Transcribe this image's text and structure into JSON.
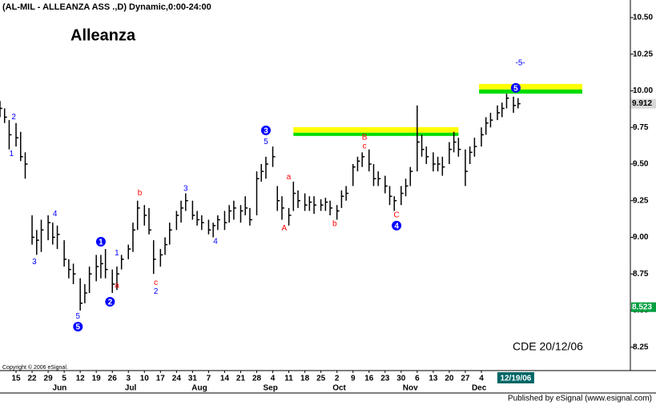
{
  "chart_data": {
    "type": "ohlc",
    "header": "(AL-MIL - ALLEANZA ASS      .,D) Dynamic,0:00-24:00",
    "title": "Alleanza",
    "copyright": "Copyright © 2006 eSignal.",
    "footer": "Published by eSignal (www.esignal.com)",
    "stamp": "CDE  20/12/06",
    "color": "#000000",
    "xlim": [
      "2006-05-08",
      "2007-02-07"
    ],
    "ylim": [
      8.09,
      10.62
    ],
    "yticks": [
      {
        "value": 10.5,
        "label": "10.50"
      },
      {
        "value": 10.25,
        "label": "10.25"
      },
      {
        "value": 10,
        "label": "10.00"
      },
      {
        "value": 9.75,
        "label": "9.75"
      },
      {
        "value": 9.5,
        "label": "9.50"
      },
      {
        "value": 9.25,
        "label": "9.25"
      },
      {
        "value": 9,
        "label": "9.00"
      },
      {
        "value": 8.75,
        "label": "8.75"
      },
      {
        "value": 8.5,
        "label": "8.50"
      },
      {
        "value": 8.25,
        "label": "8.25"
      }
    ],
    "xticks": [
      {
        "value": "2006-05-15",
        "label": "15"
      },
      {
        "value": "2006-05-22",
        "label": "22"
      },
      {
        "value": "2006-05-29",
        "label": "29"
      },
      {
        "value": "2006-06-05",
        "label": "5"
      },
      {
        "value": "2006-06-12",
        "label": "12"
      },
      {
        "value": "2006-06-19",
        "label": "19"
      },
      {
        "value": "2006-06-26",
        "label": "26"
      },
      {
        "value": "2006-07-03",
        "label": "3"
      },
      {
        "value": "2006-07-10",
        "label": "10"
      },
      {
        "value": "2006-07-17",
        "label": "17"
      },
      {
        "value": "2006-07-24",
        "label": "24"
      },
      {
        "value": "2006-07-31",
        "label": "31"
      },
      {
        "value": "2006-08-07",
        "label": "7"
      },
      {
        "value": "2006-08-14",
        "label": "14"
      },
      {
        "value": "2006-08-21",
        "label": "21"
      },
      {
        "value": "2006-08-28",
        "label": "28"
      },
      {
        "value": "2006-09-04",
        "label": "4"
      },
      {
        "value": "2006-09-11",
        "label": "11"
      },
      {
        "value": "2006-09-18",
        "label": "18"
      },
      {
        "value": "2006-09-25",
        "label": "25"
      },
      {
        "value": "2006-10-02",
        "label": "2"
      },
      {
        "value": "2006-10-09",
        "label": "9"
      },
      {
        "value": "2006-10-16",
        "label": "16"
      },
      {
        "value": "2006-10-23",
        "label": "23"
      },
      {
        "value": "2006-10-30",
        "label": "30"
      },
      {
        "value": "2006-11-06",
        "label": "6"
      },
      {
        "value": "2006-11-13",
        "label": "13"
      },
      {
        "value": "2006-11-20",
        "label": "20"
      },
      {
        "value": "2006-11-27",
        "label": "27"
      },
      {
        "value": "2006-12-04",
        "label": "4"
      }
    ],
    "months": [
      {
        "value": "2006-06-03",
        "label": "Jun"
      },
      {
        "value": "2006-07-04",
        "label": "Jul"
      },
      {
        "value": "2006-08-03",
        "label": "Aug"
      },
      {
        "value": "2006-09-03",
        "label": "Sep"
      },
      {
        "value": "2006-10-03",
        "label": "Oct"
      },
      {
        "value": "2006-11-03",
        "label": "Nov"
      },
      {
        "value": "2006-12-03",
        "label": "Dec"
      }
    ],
    "current_date": {
      "value": "2006-12-19",
      "label": "12/19/06"
    },
    "price_labels": [
      {
        "value": 9.912,
        "label": "9.912",
        "color": "#000000",
        "background": "#d8d8d8"
      },
      {
        "value": 8.523,
        "label": "8.523",
        "color": "#ffffff",
        "background": "#00a040"
      }
    ],
    "x": [
      "2006-05-08",
      "2006-05-10",
      "2006-05-12",
      "2006-05-15",
      "2006-05-17",
      "2006-05-19",
      "2006-05-22",
      "2006-05-24",
      "2006-05-26",
      "2006-05-29",
      "2006-05-31",
      "2006-06-02",
      "2006-06-05",
      "2006-06-07",
      "2006-06-09",
      "2006-06-12",
      "2006-06-14",
      "2006-06-16",
      "2006-06-19",
      "2006-06-21",
      "2006-06-23",
      "2006-06-26",
      "2006-06-28",
      "2006-06-30",
      "2006-07-03",
      "2006-07-05",
      "2006-07-07",
      "2006-07-10",
      "2006-07-12",
      "2006-07-14",
      "2006-07-17",
      "2006-07-19",
      "2006-07-21",
      "2006-07-24",
      "2006-07-26",
      "2006-07-28",
      "2006-07-31",
      "2006-08-02",
      "2006-08-04",
      "2006-08-07",
      "2006-08-09",
      "2006-08-11",
      "2006-08-14",
      "2006-08-16",
      "2006-08-18",
      "2006-08-21",
      "2006-08-23",
      "2006-08-25",
      "2006-08-28",
      "2006-08-30",
      "2006-09-01",
      "2006-09-04",
      "2006-09-06",
      "2006-09-08",
      "2006-09-11",
      "2006-09-13",
      "2006-09-15",
      "2006-09-18",
      "2006-09-20",
      "2006-09-22",
      "2006-09-25",
      "2006-09-27",
      "2006-09-29",
      "2006-10-02",
      "2006-10-04",
      "2006-10-06",
      "2006-10-09",
      "2006-10-11",
      "2006-10-13",
      "2006-10-16",
      "2006-10-18",
      "2006-10-20",
      "2006-10-23",
      "2006-10-25",
      "2006-10-27",
      "2006-10-30",
      "2006-11-01",
      "2006-11-03",
      "2006-11-06",
      "2006-11-08",
      "2006-11-10",
      "2006-11-13",
      "2006-11-15",
      "2006-11-17",
      "2006-11-20",
      "2006-11-22",
      "2006-11-24",
      "2006-11-27",
      "2006-11-29",
      "2006-12-01",
      "2006-12-04",
      "2006-12-06",
      "2006-12-08",
      "2006-12-11",
      "2006-12-13",
      "2006-12-15",
      "2006-12-18",
      "2006-12-20"
    ],
    "high": [
      9.93,
      9.88,
      9.8,
      9.78,
      9.72,
      9.58,
      9.15,
      9.05,
      9.12,
      9.15,
      9.1,
      9.08,
      8.98,
      8.85,
      8.82,
      8.72,
      8.68,
      8.8,
      8.88,
      8.88,
      8.92,
      8.78,
      8.8,
      8.88,
      8.95,
      9.1,
      9.25,
      9.22,
      9.2,
      8.98,
      8.92,
      9.0,
      9.1,
      9.18,
      9.25,
      9.3,
      9.25,
      9.18,
      9.15,
      9.12,
      9.1,
      9.15,
      9.18,
      9.22,
      9.25,
      9.22,
      9.28,
      9.2,
      9.45,
      9.5,
      9.55,
      9.62,
      9.35,
      9.28,
      9.2,
      9.38,
      9.32,
      9.3,
      9.28,
      9.28,
      9.26,
      9.27,
      9.25,
      9.22,
      9.32,
      9.35,
      9.5,
      9.55,
      9.58,
      9.6,
      9.5,
      9.45,
      9.42,
      9.35,
      9.28,
      9.35,
      9.4,
      9.48,
      9.9,
      9.7,
      9.62,
      9.58,
      9.55,
      9.55,
      9.65,
      9.72,
      9.68,
      9.6,
      9.62,
      9.68,
      9.75,
      9.82,
      9.85,
      9.9,
      9.92,
      9.98,
      9.96,
      9.95
    ],
    "low": [
      9.82,
      9.78,
      9.6,
      9.62,
      9.52,
      9.4,
      8.95,
      8.88,
      8.9,
      8.98,
      8.95,
      8.92,
      8.8,
      8.72,
      8.68,
      8.5,
      8.55,
      8.62,
      8.7,
      8.72,
      8.72,
      8.62,
      8.64,
      8.78,
      8.85,
      8.9,
      9.05,
      9.08,
      9.02,
      8.75,
      8.8,
      8.88,
      8.95,
      9.05,
      9.1,
      9.18,
      9.12,
      9.08,
      9.05,
      9.02,
      9.0,
      9.05,
      9.05,
      9.1,
      9.12,
      9.1,
      9.15,
      9.08,
      9.15,
      9.38,
      9.4,
      9.48,
      9.18,
      9.12,
      9.08,
      9.18,
      9.2,
      9.18,
      9.18,
      9.16,
      9.18,
      9.18,
      9.15,
      9.12,
      9.2,
      9.25,
      9.35,
      9.45,
      9.48,
      9.45,
      9.35,
      9.35,
      9.3,
      9.22,
      9.18,
      9.22,
      9.28,
      9.35,
      9.45,
      9.55,
      9.5,
      9.45,
      9.45,
      9.42,
      9.5,
      9.58,
      9.55,
      9.35,
      9.5,
      9.55,
      9.62,
      9.7,
      9.75,
      9.8,
      9.82,
      9.88,
      9.85,
      9.88
    ],
    "close": [
      9.88,
      9.82,
      9.7,
      9.68,
      9.55,
      9.5,
      9.0,
      8.98,
      9.05,
      9.1,
      9.0,
      9.02,
      8.85,
      8.78,
      8.75,
      8.55,
      8.62,
      8.75,
      8.8,
      8.82,
      8.78,
      8.68,
      8.75,
      8.85,
      8.92,
      9.05,
      9.2,
      9.15,
      9.05,
      8.85,
      8.88,
      8.95,
      9.05,
      9.15,
      9.2,
      9.25,
      9.15,
      9.12,
      9.1,
      9.05,
      9.08,
      9.12,
      9.1,
      9.18,
      9.2,
      9.18,
      9.2,
      9.12,
      9.4,
      9.45,
      9.5,
      9.55,
      9.25,
      9.2,
      9.15,
      9.3,
      9.25,
      9.22,
      9.24,
      9.22,
      9.22,
      9.24,
      9.2,
      9.18,
      9.28,
      9.3,
      9.48,
      9.52,
      9.55,
      9.5,
      9.4,
      9.4,
      9.35,
      9.28,
      9.25,
      9.3,
      9.35,
      9.45,
      9.65,
      9.6,
      9.55,
      9.5,
      9.5,
      9.48,
      9.6,
      9.65,
      9.6,
      9.45,
      9.58,
      9.62,
      9.7,
      9.78,
      9.8,
      9.85,
      9.88,
      9.95,
      9.9,
      9.912
    ],
    "zones": [
      {
        "x": [
          "2006-09-13",
          "2006-11-24"
        ],
        "y": [
          9.714,
          9.752
        ],
        "color": "#ffff00"
      },
      {
        "x": [
          "2006-09-13",
          "2006-11-24"
        ],
        "y": [
          9.692,
          9.714
        ],
        "color": "#00dd00"
      },
      {
        "x": [
          "2006-12-03",
          "2007-01-17"
        ],
        "y": [
          10.009,
          10.047
        ],
        "color": "#ffff00"
      },
      {
        "x": [
          "2006-12-03",
          "2007-01-17"
        ],
        "y": [
          9.981,
          10.009
        ],
        "color": "#00dd00"
      }
    ],
    "annotations": [
      {
        "text": "2",
        "x": "2006-05-14",
        "y": 9.82,
        "color": "#0000ff",
        "circled": false
      },
      {
        "text": "1",
        "x": "2006-05-13",
        "y": 9.57,
        "color": "#0000ff",
        "circled": false
      },
      {
        "text": "3",
        "x": "2006-05-23",
        "y": 8.83,
        "color": "#0000ff",
        "circled": false
      },
      {
        "text": "4",
        "x": "2006-06-01",
        "y": 9.16,
        "color": "#0000ff",
        "circled": false
      },
      {
        "text": "5",
        "x": "2006-06-11",
        "y": 8.46,
        "color": "#0000ff",
        "circled": false
      },
      {
        "text": "5",
        "x": "2006-06-11",
        "y": 8.39,
        "color": "#0000ff",
        "circled": true
      },
      {
        "text": "1",
        "x": "2006-06-21",
        "y": 8.97,
        "color": "#0000ff",
        "circled": true
      },
      {
        "text": "2",
        "x": "2006-06-25",
        "y": 8.56,
        "color": "#0000ff",
        "circled": true
      },
      {
        "text": "a",
        "x": "2006-06-28",
        "y": 8.67,
        "color": "#ff0000",
        "circled": false
      },
      {
        "text": "1",
        "x": "2006-06-28",
        "y": 8.89,
        "color": "#0000ff",
        "circled": false
      },
      {
        "text": "b",
        "x": "2006-07-08",
        "y": 9.3,
        "color": "#ff0000",
        "circled": false
      },
      {
        "text": "c",
        "x": "2006-07-15",
        "y": 8.69,
        "color": "#ff0000",
        "circled": false
      },
      {
        "text": "2",
        "x": "2006-07-15",
        "y": 8.63,
        "color": "#0000ff",
        "circled": false
      },
      {
        "text": "3",
        "x": "2006-07-28",
        "y": 9.33,
        "color": "#0000ff",
        "circled": false
      },
      {
        "text": "4",
        "x": "2006-08-10",
        "y": 8.97,
        "color": "#0000ff",
        "circled": false
      },
      {
        "text": "3",
        "x": "2006-09-01",
        "y": 9.73,
        "color": "#0000ff",
        "circled": true
      },
      {
        "text": "5",
        "x": "2006-09-01",
        "y": 9.65,
        "color": "#0000ff",
        "circled": false
      },
      {
        "text": "a",
        "x": "2006-09-11",
        "y": 9.41,
        "color": "#ff0000",
        "circled": false
      },
      {
        "text": "A",
        "x": "2006-09-09",
        "y": 9.06,
        "color": "#ff0000",
        "circled": false
      },
      {
        "text": "b",
        "x": "2006-10-01",
        "y": 9.09,
        "color": "#ff0000",
        "circled": false
      },
      {
        "text": "B",
        "x": "2006-10-14",
        "y": 9.68,
        "color": "#ff0000",
        "circled": false
      },
      {
        "text": "c",
        "x": "2006-10-14",
        "y": 9.62,
        "color": "#ff0000",
        "circled": false
      },
      {
        "text": "C",
        "x": "2006-10-28",
        "y": 9.15,
        "color": "#ff0000",
        "circled": false
      },
      {
        "text": "4",
        "x": "2006-10-28",
        "y": 9.08,
        "color": "#0000ff",
        "circled": true
      },
      {
        "text": "5",
        "x": "2006-12-19",
        "y": 10.02,
        "color": "#0000ff",
        "circled": true
      },
      {
        "text": "-5-",
        "x": "2006-12-21",
        "y": 10.19,
        "color": "#0000ff",
        "circled": false
      }
    ]
  }
}
